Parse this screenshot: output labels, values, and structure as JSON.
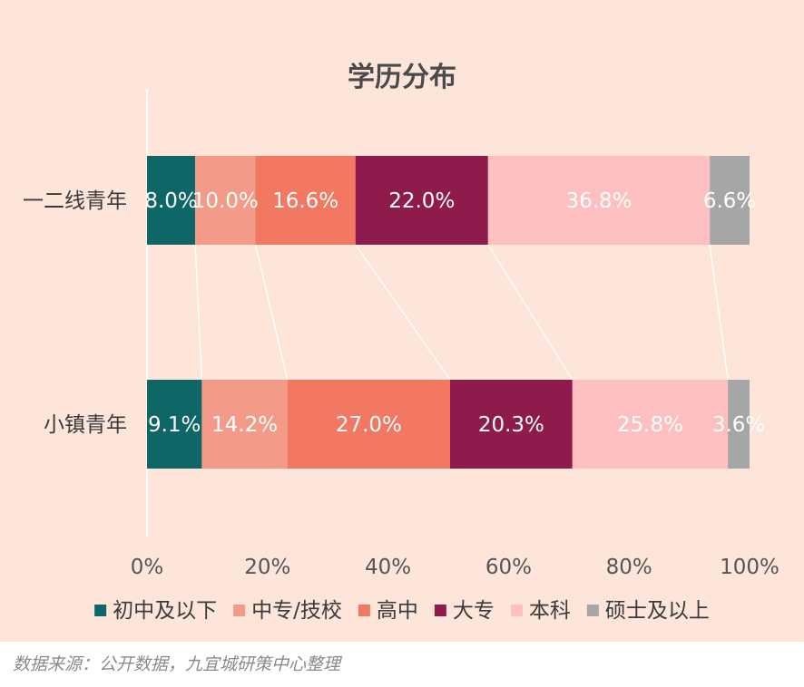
{
  "chart_data": {
    "type": "bar",
    "orientation": "horizontal",
    "stacked": "percent",
    "title": "学历分布",
    "categories": [
      "一二线青年",
      "小镇青年"
    ],
    "series": [
      {
        "name": "初中及以下",
        "color": "#0e6666",
        "values": [
          8.0,
          9.1
        ],
        "labels": [
          "8.0%",
          "9.1%"
        ]
      },
      {
        "name": "中专/技校",
        "color": "#f39a88",
        "values": [
          10.0,
          14.2
        ],
        "labels": [
          "10.0%",
          "14.2%"
        ]
      },
      {
        "name": "高中",
        "color": "#f27862",
        "values": [
          16.6,
          27.0
        ],
        "labels": [
          "16.6%",
          "27.0%"
        ]
      },
      {
        "name": "大专",
        "color": "#8e1b4b",
        "values": [
          22.0,
          20.3
        ],
        "labels": [
          "22.0%",
          "20.3%"
        ]
      },
      {
        "name": "本科",
        "color": "#fdbfbf",
        "values": [
          36.8,
          25.8
        ],
        "labels": [
          "36.8%",
          "25.8%"
        ]
      },
      {
        "name": "硕士及以上",
        "color": "#a6a6a6",
        "values": [
          6.6,
          3.6
        ],
        "labels": [
          "6.6%",
          "3.6%"
        ]
      }
    ],
    "xlim": [
      0,
      100
    ],
    "xticks": [
      "0%",
      "20%",
      "40%",
      "60%",
      "80%",
      "100%"
    ],
    "series_lines": true,
    "grid": false,
    "legend_position": "bottom"
  },
  "source_note": "数据来源：公开数据，九宜城研策中心整理",
  "colors": {
    "background": "#fde5da",
    "series_line": "#ffffff"
  }
}
